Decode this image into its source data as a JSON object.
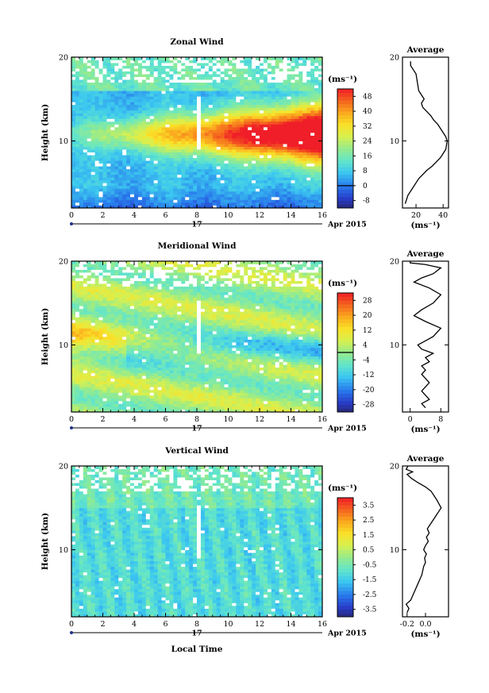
{
  "figure": {
    "xlabel": "Local Time",
    "date_day": "17",
    "date_label": "Apr 2015",
    "average_title": "Average"
  },
  "chart_data": [
    {
      "type": "heatmap",
      "title": "Zonal Wind",
      "ylabel": "Height (km)",
      "xlabel": "Local Time",
      "xlim": [
        0,
        16
      ],
      "ylim": [
        2,
        20
      ],
      "xticks": [
        0,
        2,
        4,
        6,
        8,
        10,
        12,
        14,
        16
      ],
      "yticks": [
        10,
        20
      ],
      "colorbar": {
        "unit": "(ms⁻¹)",
        "ticks": [
          "-8",
          "0",
          "8",
          "16",
          "24",
          "32",
          "40",
          "48"
        ],
        "min": -12,
        "max": 52,
        "zero_line": 0
      },
      "average": {
        "type": "line",
        "title": "Average",
        "xlabel": "(ms⁻¹)",
        "xticks": [
          "20",
          "40"
        ],
        "xtick_values": [
          20,
          40
        ],
        "xlim": [
          10,
          44
        ],
        "ylim": [
          2,
          20
        ],
        "yticks": [
          10,
          20
        ],
        "x": [
          12,
          13,
          14,
          16,
          18,
          20,
          22,
          25,
          28,
          32,
          35,
          38,
          40,
          42,
          43,
          42,
          40,
          38,
          36,
          33,
          31,
          28,
          25,
          24,
          26,
          24,
          22,
          21,
          20,
          18,
          16,
          16
        ],
        "y": [
          2.5,
          3,
          3.5,
          4,
          4.5,
          5,
          5.5,
          6,
          6.5,
          7,
          7.5,
          8,
          8.5,
          9,
          10,
          10.5,
          11,
          11.5,
          12,
          12.5,
          13,
          13.5,
          14,
          14.5,
          15,
          15.5,
          16,
          17,
          18,
          18.5,
          19,
          19.5
        ]
      }
    },
    {
      "type": "heatmap",
      "title": "Meridional Wind",
      "ylabel": "Height (km)",
      "xlabel": "Local Time",
      "xlim": [
        0,
        16
      ],
      "ylim": [
        2,
        20
      ],
      "xticks": [
        0,
        2,
        4,
        6,
        8,
        10,
        12,
        14,
        16
      ],
      "yticks": [
        10,
        20
      ],
      "colorbar": {
        "unit": "(ms⁻¹)",
        "ticks": [
          "28",
          "20",
          "12",
          "4",
          "-4",
          "-12",
          "-20",
          "-28"
        ],
        "min": -32,
        "max": 32,
        "zero_line": 0
      },
      "average": {
        "type": "line",
        "title": "Average",
        "xlabel": "(ms⁻¹)",
        "xticks": [
          "0",
          "8"
        ],
        "xtick_values": [
          0,
          8
        ],
        "xlim": [
          -2,
          10
        ],
        "ylim": [
          2,
          20
        ],
        "yticks": [
          10,
          20
        ],
        "x": [
          4,
          3,
          5,
          4,
          3,
          4,
          5,
          4,
          3,
          4,
          3,
          5,
          4,
          6,
          3,
          2,
          4,
          6,
          8,
          4,
          1,
          3,
          6,
          8,
          5,
          1,
          3,
          6,
          8,
          4,
          0,
          0
        ],
        "y": [
          2.5,
          3,
          3.5,
          4,
          4.5,
          5,
          5.5,
          6,
          6.5,
          7,
          7.5,
          8,
          8.5,
          9,
          9.5,
          10,
          10.5,
          11,
          12,
          12.8,
          13.5,
          14.2,
          15,
          16,
          16.8,
          17.5,
          18,
          18.5,
          19.2,
          19.6,
          19.8,
          20
        ]
      }
    },
    {
      "type": "heatmap",
      "title": "Vertical Wind",
      "ylabel": "Height (km)",
      "xlabel": "Local Time",
      "xlim": [
        0,
        16
      ],
      "ylim": [
        2,
        20
      ],
      "xticks": [
        0,
        2,
        4,
        6,
        8,
        10,
        12,
        14,
        16
      ],
      "yticks": [
        10,
        20
      ],
      "colorbar": {
        "unit": "(ms⁻¹)",
        "ticks": [
          "3.5",
          "2.5",
          "1.5",
          "0.5",
          "-0.5",
          "-1.5",
          "-2.5",
          "-3.5"
        ],
        "min": -4,
        "max": 4,
        "zero_line": null
      },
      "average": {
        "type": "line",
        "title": "Average",
        "xlabel": "(ms⁻¹)",
        "xticks": [
          "-0.2",
          "0.0"
        ],
        "xtick_values": [
          -0.2,
          0.0
        ],
        "xlim": [
          -0.25,
          0.25
        ],
        "ylim": [
          2,
          20
        ],
        "yticks": [
          10,
          20
        ],
        "x": [
          -0.2,
          -0.18,
          -0.21,
          -0.16,
          -0.12,
          -0.1,
          -0.06,
          -0.04,
          -0.02,
          0.0,
          -0.01,
          0.01,
          -0.02,
          0.0,
          0.03,
          0.01,
          0.04,
          0.02,
          0.05,
          0.08,
          0.11,
          0.14,
          0.17,
          0.12,
          0.06,
          0.0,
          -0.08,
          -0.15,
          -0.2,
          -0.14,
          -0.21,
          -0.19
        ],
        "y": [
          2.5,
          3,
          3.5,
          4,
          5,
          5.5,
          6.5,
          7,
          8,
          8.5,
          9,
          9.5,
          10,
          10.5,
          11,
          11.5,
          12,
          12.5,
          13,
          13.5,
          14,
          14.5,
          15,
          16,
          17,
          17.5,
          18,
          18.5,
          19,
          19.3,
          19.6,
          20
        ]
      }
    }
  ]
}
